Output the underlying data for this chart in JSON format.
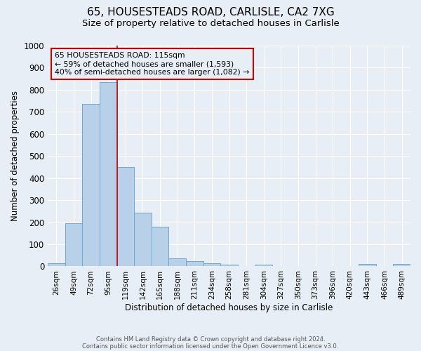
{
  "title1": "65, HOUSESTEADS ROAD, CARLISLE, CA2 7XG",
  "title2": "Size of property relative to detached houses in Carlisle",
  "xlabel": "Distribution of detached houses by size in Carlisle",
  "ylabel": "Number of detached properties",
  "footnote1": "Contains HM Land Registry data © Crown copyright and database right 2024.",
  "footnote2": "Contains public sector information licensed under the Open Government Licence v3.0.",
  "bar_labels": [
    "26sqm",
    "49sqm",
    "72sqm",
    "95sqm",
    "119sqm",
    "142sqm",
    "165sqm",
    "188sqm",
    "211sqm",
    "234sqm",
    "258sqm",
    "281sqm",
    "304sqm",
    "327sqm",
    "350sqm",
    "373sqm",
    "396sqm",
    "420sqm",
    "443sqm",
    "466sqm",
    "489sqm"
  ],
  "bar_values": [
    15,
    197,
    735,
    835,
    450,
    243,
    180,
    35,
    25,
    15,
    8,
    0,
    8,
    0,
    0,
    0,
    0,
    0,
    10,
    0,
    10
  ],
  "bar_color": "#b8d0e8",
  "bar_edge_color": "#6aaad4",
  "vline_color": "#cc0000",
  "annotation_box_color": "#cc0000",
  "ylim": [
    0,
    1000
  ],
  "yticks": [
    0,
    100,
    200,
    300,
    400,
    500,
    600,
    700,
    800,
    900,
    1000
  ],
  "bg_color": "#e8eef5",
  "grid_color": "#ffffff",
  "title1_fontsize": 11,
  "title2_fontsize": 9.5,
  "annotation_line1": "65 HOUSESTEADS ROAD: 115sqm",
  "annotation_line2": "← 59% of detached houses are smaller (1,593)",
  "annotation_line3": "40% of semi-detached houses are larger (1,082) →"
}
